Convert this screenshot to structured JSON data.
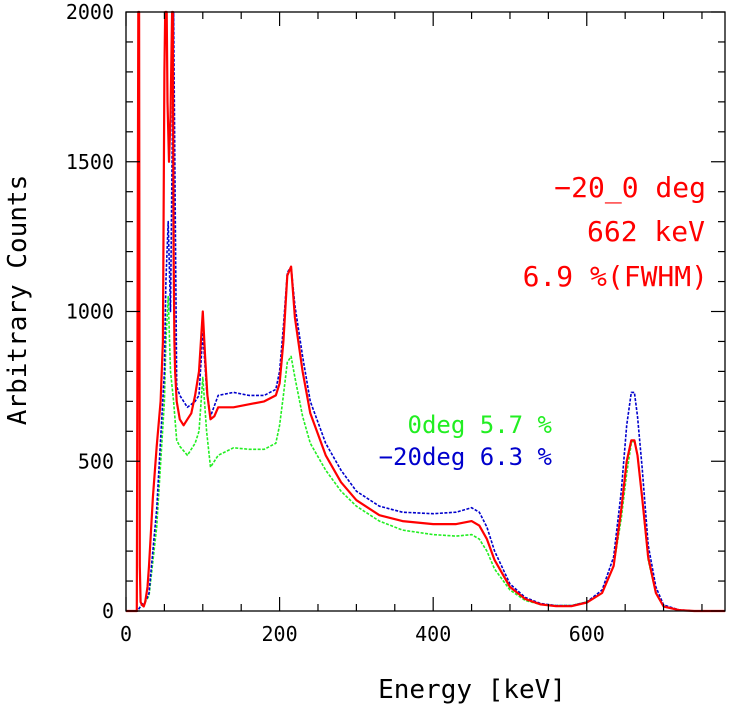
{
  "chart_data": {
    "type": "line",
    "title": "",
    "xlabel": "Energy [keV]",
    "ylabel": "Arbitrary Counts",
    "xlim": [
      0,
      780
    ],
    "ylim": [
      0,
      2000
    ],
    "xticks": [
      0,
      200,
      400,
      600
    ],
    "yticks": [
      0,
      500,
      1000,
      1500,
      2000
    ],
    "grid": false,
    "annotations": [
      {
        "text": "−20_0 deg",
        "color": "#ff0000"
      },
      {
        "text": "662 keV",
        "color": "#ff0000"
      },
      {
        "text": "6.9 %(FWHM)",
        "color": "#ff0000"
      }
    ],
    "legend": [
      {
        "text": "0deg 5.7 %",
        "color": "#22ee22"
      },
      {
        "text": "−20deg 6.3 %",
        "color": "#0000cc"
      }
    ],
    "series": [
      {
        "color": "#22ee22",
        "x": [
          0,
          15,
          20,
          25,
          30,
          40,
          50,
          52,
          55,
          58,
          62,
          66,
          70,
          80,
          90,
          95,
          100,
          105,
          110,
          120,
          140,
          160,
          180,
          195,
          200,
          205,
          210,
          215,
          220,
          230,
          240,
          260,
          280,
          300,
          330,
          360,
          400,
          430,
          450,
          460,
          470,
          480,
          500,
          520,
          540,
          560,
          580,
          600,
          620,
          635,
          645,
          652,
          658,
          662,
          666,
          672,
          680,
          690,
          700,
          720,
          740,
          760,
          780
        ],
        "y": [
          0,
          0,
          20,
          30,
          50,
          280,
          700,
          900,
          1050,
          800,
          700,
          570,
          550,
          520,
          560,
          600,
          780,
          600,
          480,
          520,
          545,
          540,
          540,
          560,
          620,
          720,
          830,
          850,
          780,
          650,
          560,
          470,
          400,
          350,
          300,
          270,
          255,
          250,
          255,
          240,
          200,
          140,
          70,
          35,
          22,
          18,
          18,
          30,
          60,
          150,
          310,
          460,
          560,
          570,
          520,
          380,
          170,
          60,
          15,
          3,
          0,
          0,
          0
        ]
      },
      {
        "color": "#0000cc",
        "x": [
          0,
          15,
          20,
          25,
          30,
          40,
          50,
          52,
          55,
          58,
          62,
          66,
          70,
          80,
          90,
          95,
          100,
          105,
          110,
          120,
          140,
          160,
          180,
          195,
          200,
          205,
          210,
          215,
          220,
          230,
          240,
          260,
          280,
          300,
          330,
          360,
          400,
          430,
          450,
          460,
          470,
          480,
          500,
          520,
          540,
          560,
          580,
          600,
          620,
          635,
          645,
          652,
          658,
          662,
          666,
          672,
          680,
          690,
          700,
          720,
          740,
          760,
          780
        ],
        "y": [
          0,
          0,
          20,
          30,
          60,
          340,
          800,
          1100,
          1300,
          1000,
          2000,
          750,
          720,
          680,
          700,
          720,
          930,
          740,
          650,
          720,
          730,
          720,
          720,
          740,
          800,
          950,
          1130,
          1150,
          1020,
          850,
          700,
          560,
          470,
          400,
          350,
          330,
          325,
          330,
          345,
          330,
          280,
          200,
          90,
          45,
          25,
          18,
          18,
          30,
          70,
          180,
          400,
          620,
          730,
          730,
          650,
          480,
          220,
          80,
          20,
          4,
          0,
          0,
          0
        ]
      },
      {
        "color": "#ff0000",
        "x": [
          0,
          14,
          16,
          17,
          18,
          19,
          21,
          23,
          25,
          28,
          30,
          35,
          40,
          45,
          48,
          50,
          51,
          52,
          53,
          54,
          56,
          58,
          60,
          61,
          62,
          63,
          64,
          66,
          70,
          75,
          80,
          85,
          90,
          95,
          100,
          103,
          106,
          110,
          115,
          120,
          140,
          160,
          180,
          195,
          200,
          205,
          210,
          215,
          220,
          230,
          240,
          260,
          280,
          300,
          330,
          360,
          400,
          430,
          450,
          460,
          470,
          480,
          500,
          520,
          540,
          560,
          580,
          600,
          620,
          635,
          645,
          652,
          658,
          662,
          666,
          672,
          680,
          690,
          700,
          720,
          740,
          760,
          780
        ],
        "y": [
          0,
          0,
          2000,
          2000,
          150,
          30,
          20,
          15,
          30,
          80,
          150,
          380,
          550,
          700,
          900,
          1800,
          2000,
          2000,
          2000,
          1700,
          1500,
          1650,
          2000,
          2000,
          1200,
          900,
          800,
          700,
          640,
          620,
          640,
          660,
          720,
          800,
          1000,
          850,
          720,
          640,
          650,
          680,
          680,
          690,
          700,
          720,
          760,
          900,
          1120,
          1150,
          980,
          800,
          660,
          520,
          430,
          370,
          320,
          300,
          290,
          290,
          300,
          285,
          240,
          170,
          80,
          40,
          22,
          16,
          16,
          28,
          60,
          150,
          340,
          500,
          570,
          570,
          520,
          380,
          180,
          60,
          15,
          3,
          0,
          0,
          0
        ]
      }
    ]
  }
}
